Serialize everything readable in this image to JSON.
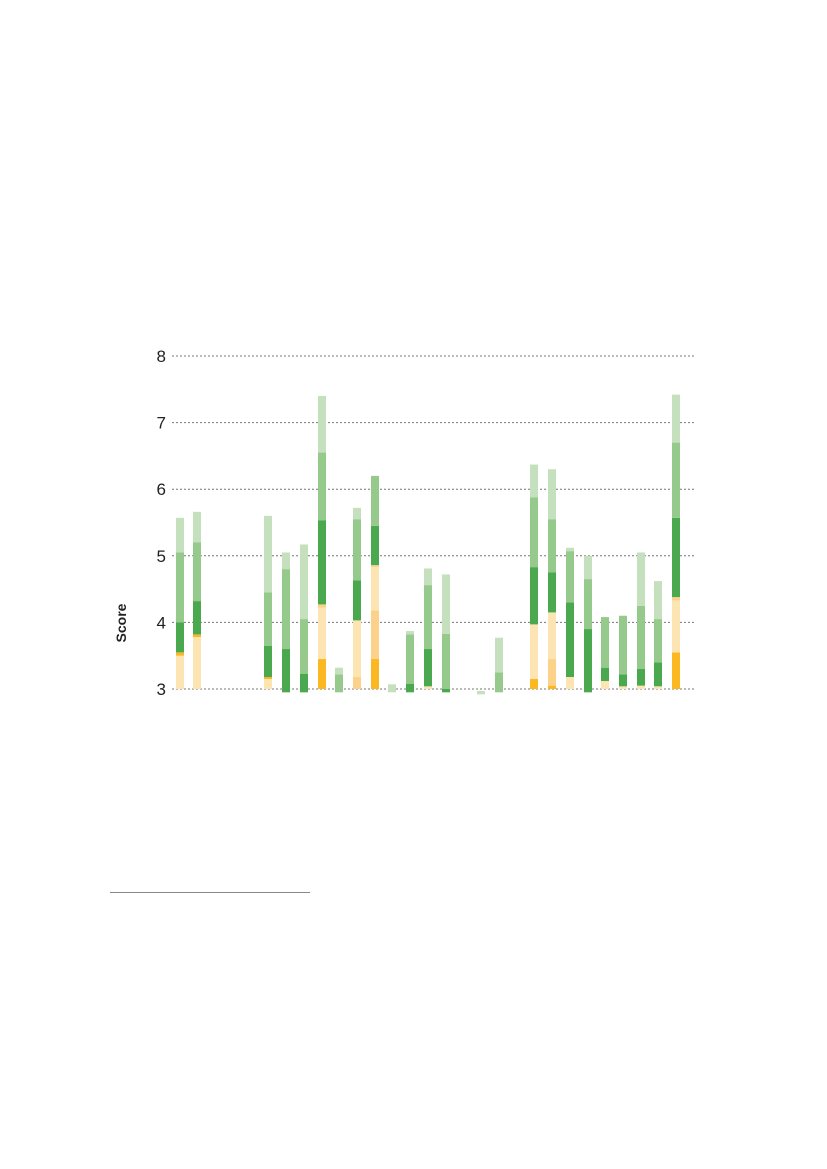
{
  "chart_data": {
    "type": "bar",
    "stacked": true,
    "ylabel": "Score",
    "ylim": [
      2.88,
      8
    ],
    "yticks": [
      3,
      4,
      5,
      6,
      7,
      8
    ],
    "grid": true,
    "colors": [
      "#fbb823",
      "#fcd28a",
      "#fde4b3",
      "#4aa84f",
      "#96c98c",
      "#c5e0bd"
    ],
    "bars": [
      {
        "id": "b1",
        "segments": [
          [
            3.0,
            3.5,
            2
          ],
          [
            3.5,
            3.55,
            0
          ],
          [
            3.55,
            4.0,
            3
          ],
          [
            4.0,
            5.05,
            4
          ],
          [
            5.05,
            5.57,
            5
          ]
        ]
      },
      {
        "id": "b2",
        "segments": [
          [
            3.0,
            3.78,
            2
          ],
          [
            3.78,
            3.82,
            0
          ],
          [
            3.82,
            4.32,
            3
          ],
          [
            4.32,
            5.2,
            4
          ],
          [
            5.2,
            5.66,
            5
          ]
        ]
      },
      {
        "id": "b3",
        "segments": [
          [
            3.0,
            3.15,
            2
          ],
          [
            3.15,
            3.18,
            0
          ],
          [
            3.18,
            3.65,
            3
          ],
          [
            3.65,
            4.45,
            4
          ],
          [
            4.45,
            5.6,
            5
          ]
        ]
      },
      {
        "id": "b4",
        "segments": [
          [
            2.95,
            3.6,
            3
          ],
          [
            3.6,
            4.8,
            4
          ],
          [
            4.8,
            5.05,
            5
          ]
        ]
      },
      {
        "id": "b5",
        "segments": [
          [
            2.95,
            3.23,
            3
          ],
          [
            3.23,
            4.05,
            4
          ],
          [
            4.05,
            5.17,
            5
          ]
        ]
      },
      {
        "id": "b6",
        "segments": [
          [
            3.0,
            3.45,
            0
          ],
          [
            3.45,
            4.22,
            2
          ],
          [
            4.22,
            4.27,
            1
          ],
          [
            4.27,
            5.53,
            3
          ],
          [
            5.53,
            6.55,
            4
          ],
          [
            6.55,
            7.4,
            5
          ]
        ]
      },
      {
        "id": "b7",
        "segments": [
          [
            2.95,
            3.22,
            4
          ],
          [
            3.22,
            3.32,
            5
          ]
        ]
      },
      {
        "id": "b8",
        "segments": [
          [
            3.0,
            3.18,
            1
          ],
          [
            3.18,
            4.03,
            2
          ],
          [
            4.03,
            4.63,
            3
          ],
          [
            4.63,
            5.55,
            4
          ],
          [
            5.55,
            5.72,
            5
          ]
        ]
      },
      {
        "id": "b9",
        "segments": [
          [
            3.0,
            3.45,
            0
          ],
          [
            3.45,
            4.18,
            1
          ],
          [
            4.18,
            4.83,
            2
          ],
          [
            4.83,
            4.86,
            1
          ],
          [
            4.86,
            5.45,
            3
          ],
          [
            5.45,
            6.2,
            4
          ]
        ]
      },
      {
        "id": "b10",
        "segments": [
          [
            2.95,
            3.07,
            5
          ]
        ]
      },
      {
        "id": "b11",
        "segments": [
          [
            2.95,
            3.08,
            3
          ],
          [
            3.08,
            3.82,
            4
          ],
          [
            3.82,
            3.87,
            5
          ]
        ]
      },
      {
        "id": "b12",
        "segments": [
          [
            3.0,
            3.04,
            2
          ],
          [
            3.04,
            3.6,
            3
          ],
          [
            3.6,
            4.56,
            4
          ],
          [
            4.56,
            4.81,
            5
          ]
        ]
      },
      {
        "id": "b13",
        "segments": [
          [
            2.95,
            3.0,
            3
          ],
          [
            3.0,
            3.83,
            4
          ],
          [
            3.83,
            4.72,
            5
          ]
        ]
      },
      {
        "id": "b14",
        "segments": [
          [
            2.92,
            2.97,
            5
          ]
        ]
      },
      {
        "id": "b15",
        "segments": [
          [
            2.95,
            3.25,
            4
          ],
          [
            3.25,
            3.77,
            5
          ]
        ]
      },
      {
        "id": "b16",
        "segments": [
          [
            3.0,
            3.15,
            0
          ],
          [
            3.15,
            3.97,
            2
          ],
          [
            3.97,
            4.83,
            3
          ],
          [
            4.83,
            5.88,
            4
          ],
          [
            5.88,
            6.37,
            5
          ]
        ]
      },
      {
        "id": "b17",
        "segments": [
          [
            3.0,
            3.05,
            0
          ],
          [
            3.05,
            3.45,
            1
          ],
          [
            3.45,
            4.15,
            2
          ],
          [
            4.15,
            4.75,
            3
          ],
          [
            4.75,
            5.55,
            4
          ],
          [
            5.55,
            6.3,
            5
          ]
        ]
      },
      {
        "id": "b18",
        "segments": [
          [
            3.0,
            3.18,
            2
          ],
          [
            3.18,
            4.3,
            3
          ],
          [
            4.3,
            5.07,
            4
          ],
          [
            5.07,
            5.12,
            5
          ]
        ]
      },
      {
        "id": "b19",
        "segments": [
          [
            2.95,
            3.9,
            3
          ],
          [
            3.9,
            4.65,
            4
          ],
          [
            4.65,
            5.0,
            5
          ]
        ]
      },
      {
        "id": "b20",
        "segments": [
          [
            3.0,
            3.12,
            2
          ],
          [
            3.12,
            3.32,
            3
          ],
          [
            3.32,
            4.08,
            4
          ]
        ]
      },
      {
        "id": "b21",
        "segments": [
          [
            3.0,
            3.04,
            2
          ],
          [
            3.04,
            3.22,
            3
          ],
          [
            3.22,
            4.1,
            4
          ]
        ]
      },
      {
        "id": "b22",
        "segments": [
          [
            3.0,
            3.05,
            2
          ],
          [
            3.05,
            3.3,
            3
          ],
          [
            3.3,
            4.25,
            4
          ],
          [
            4.25,
            5.05,
            5
          ]
        ]
      },
      {
        "id": "b23",
        "segments": [
          [
            3.0,
            3.04,
            2
          ],
          [
            3.04,
            3.4,
            3
          ],
          [
            3.4,
            4.05,
            4
          ],
          [
            4.05,
            4.62,
            5
          ]
        ]
      },
      {
        "id": "b24",
        "segments": [
          [
            3.0,
            3.55,
            0
          ],
          [
            3.55,
            4.33,
            2
          ],
          [
            4.33,
            4.38,
            1
          ],
          [
            4.38,
            5.57,
            3
          ],
          [
            5.57,
            6.7,
            4
          ],
          [
            6.7,
            7.42,
            5
          ]
        ]
      }
    ]
  }
}
